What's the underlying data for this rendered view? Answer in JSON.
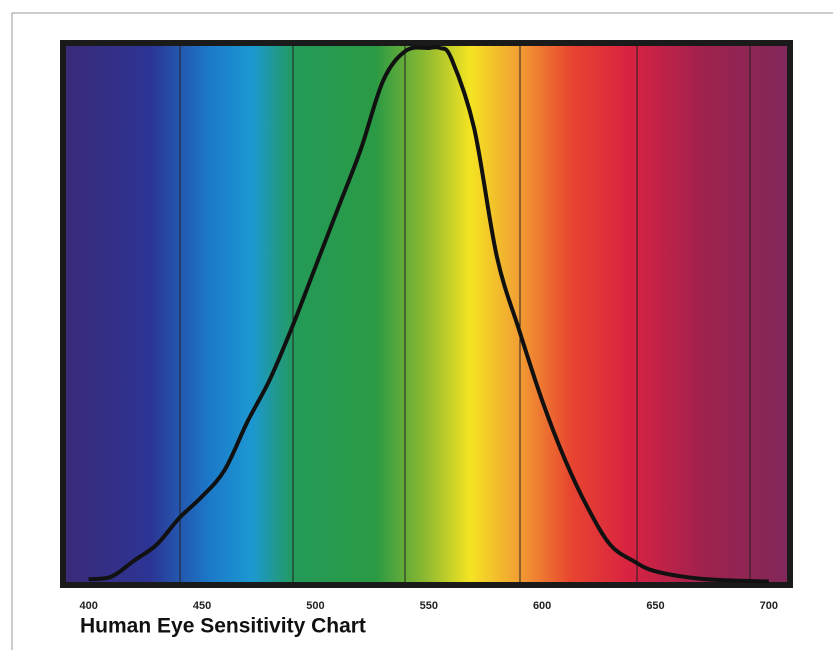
{
  "chart_data": {
    "type": "line",
    "title": "Human Eye Sensitivity Chart",
    "x": [
      400,
      410,
      420,
      430,
      440,
      450,
      460,
      470,
      480,
      490,
      500,
      510,
      520,
      530,
      540,
      550,
      555,
      560,
      570,
      580,
      590,
      600,
      610,
      620,
      630,
      640,
      650,
      670,
      690,
      700
    ],
    "series": [
      {
        "color": "#111111",
        "values": [
          0.005,
          0.01,
          0.04,
          0.07,
          0.12,
          0.16,
          0.21,
          0.3,
          0.38,
          0.48,
          0.59,
          0.7,
          0.81,
          0.94,
          0.995,
          1.0,
          1.0,
          0.98,
          0.85,
          0.61,
          0.47,
          0.34,
          0.23,
          0.14,
          0.07,
          0.04,
          0.02,
          0.006,
          0.002,
          0.001
        ]
      }
    ],
    "xlim": [
      390,
      708
    ],
    "ylim": [
      0,
      1
    ],
    "xticks": [
      400,
      450,
      500,
      550,
      600,
      650,
      700
    ]
  }
}
